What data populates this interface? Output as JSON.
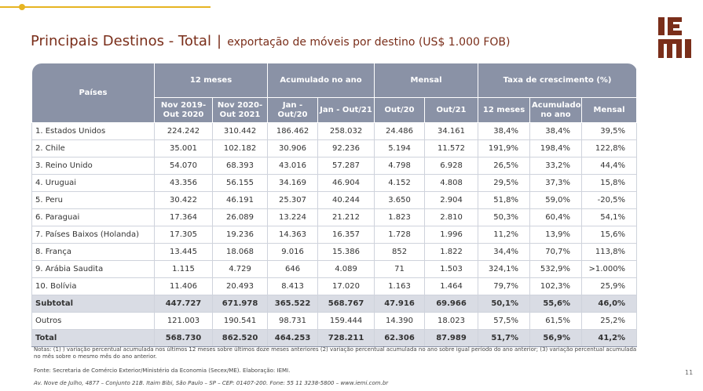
{
  "title": {
    "main": "Principais Destinos - Total",
    "separator": "|",
    "subtitle": "exportação de móveis por destino (US$ 1.000 FOB)"
  },
  "logo": {
    "text": "IEMI",
    "color": "#7a2e1a"
  },
  "table": {
    "header_top": {
      "paises": "Países",
      "group_12m": "12 meses",
      "group_acum": "Acumulado no ano",
      "group_mensal": "Mensal",
      "group_taxa": "Taxa de crescimento (%)"
    },
    "header_sub": [
      "Nov 2019-\nOut 2020",
      "Nov 2020-\nOut 2021",
      "Jan -\nOut/20",
      "Jan - Out/21",
      "Out/20",
      "Out/21",
      "12 meses",
      "Acumulado\nno ano",
      "Mensal"
    ],
    "rows": [
      {
        "country": "1. Estados Unidos",
        "v": [
          "224.242",
          "310.442",
          "186.462",
          "258.032",
          "24.486",
          "34.161",
          "38,4%",
          "38,4%",
          "39,5%"
        ]
      },
      {
        "country": "2. Chile",
        "v": [
          "35.001",
          "102.182",
          "30.906",
          "92.236",
          "5.194",
          "11.572",
          "191,9%",
          "198,4%",
          "122,8%"
        ]
      },
      {
        "country": "3. Reino Unido",
        "v": [
          "54.070",
          "68.393",
          "43.016",
          "57.287",
          "4.798",
          "6.928",
          "26,5%",
          "33,2%",
          "44,4%"
        ]
      },
      {
        "country": "4. Uruguai",
        "v": [
          "43.356",
          "56.155",
          "34.169",
          "46.904",
          "4.152",
          "4.808",
          "29,5%",
          "37,3%",
          "15,8%"
        ]
      },
      {
        "country": "5. Peru",
        "v": [
          "30.422",
          "46.191",
          "25.307",
          "40.244",
          "3.650",
          "2.904",
          "51,8%",
          "59,0%",
          "-20,5%"
        ]
      },
      {
        "country": "6. Paraguai",
        "v": [
          "17.364",
          "26.089",
          "13.224",
          "21.212",
          "1.823",
          "2.810",
          "50,3%",
          "60,4%",
          "54,1%"
        ]
      },
      {
        "country": "7. Países Baixos (Holanda)",
        "v": [
          "17.305",
          "19.236",
          "14.363",
          "16.357",
          "1.728",
          "1.996",
          "11,2%",
          "13,9%",
          "15,6%"
        ]
      },
      {
        "country": "8. França",
        "v": [
          "13.445",
          "18.068",
          "9.016",
          "15.386",
          "852",
          "1.822",
          "34,4%",
          "70,7%",
          "113,8%"
        ]
      },
      {
        "country": "9. Arábia Saudita",
        "v": [
          "1.115",
          "4.729",
          "646",
          "4.089",
          "71",
          "1.503",
          "324,1%",
          "532,9%",
          ">1.000%"
        ]
      },
      {
        "country": "10. Bolívia",
        "v": [
          "11.406",
          "20.493",
          "8.413",
          "17.020",
          "1.163",
          "1.464",
          "79,7%",
          "102,3%",
          "25,9%"
        ]
      }
    ],
    "subtotal": {
      "country": "Subtotal",
      "v": [
        "447.727",
        "671.978",
        "365.522",
        "568.767",
        "47.916",
        "69.966",
        "50,1%",
        "55,6%",
        "46,0%"
      ]
    },
    "outros": {
      "country": "Outros",
      "v": [
        "121.003",
        "190.541",
        "98.731",
        "159.444",
        "14.390",
        "18.023",
        "57,5%",
        "61,5%",
        "25,2%"
      ]
    },
    "total": {
      "country": "Total",
      "v": [
        "568.730",
        "862.520",
        "464.253",
        "728.211",
        "62.306",
        "87.989",
        "51,7%",
        "56,9%",
        "41,2%"
      ]
    }
  },
  "notes": "Notas: (1) ) variação percentual acumulada nos últimos 12 meses sobre últimos doze meses anteriores (2) variação percentual acumulada no ano sobre igual período do ano anterior; (3) variação percentual acumulada no mês sobre o mesmo mês do ano anterior.",
  "source": "Fonte: Secretaria de Comércio Exterior/Ministério da Economia (Secex/ME). Elaboração: IEMI.",
  "address": "Av. Nove de Julho, 4877 – Conjunto 21B. Itaim Bibi, São Paulo – SP – CEP: 01407-200. Fone: 55 11 3238-5800 – www.iemi.com.br",
  "page_number": "11",
  "colors": {
    "accent": "#e6b422",
    "title": "#7a2e1a",
    "header_bg": "#8a92a6",
    "subtotal_bg": "#d9dce4"
  }
}
